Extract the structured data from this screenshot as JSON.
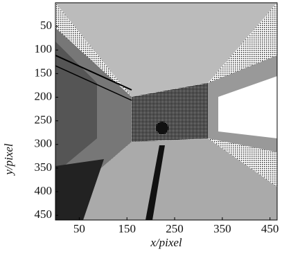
{
  "chart_data": {
    "type": "image",
    "xlabel": "x/pixel",
    "ylabel": "y/pixel",
    "xlim": [
      0,
      465
    ],
    "ylim": [
      0,
      460
    ],
    "xticks": [
      50,
      150,
      250,
      350,
      450
    ],
    "yticks": [
      50,
      100,
      150,
      200,
      250,
      300,
      350,
      400,
      450
    ],
    "y_inverted": true
  }
}
